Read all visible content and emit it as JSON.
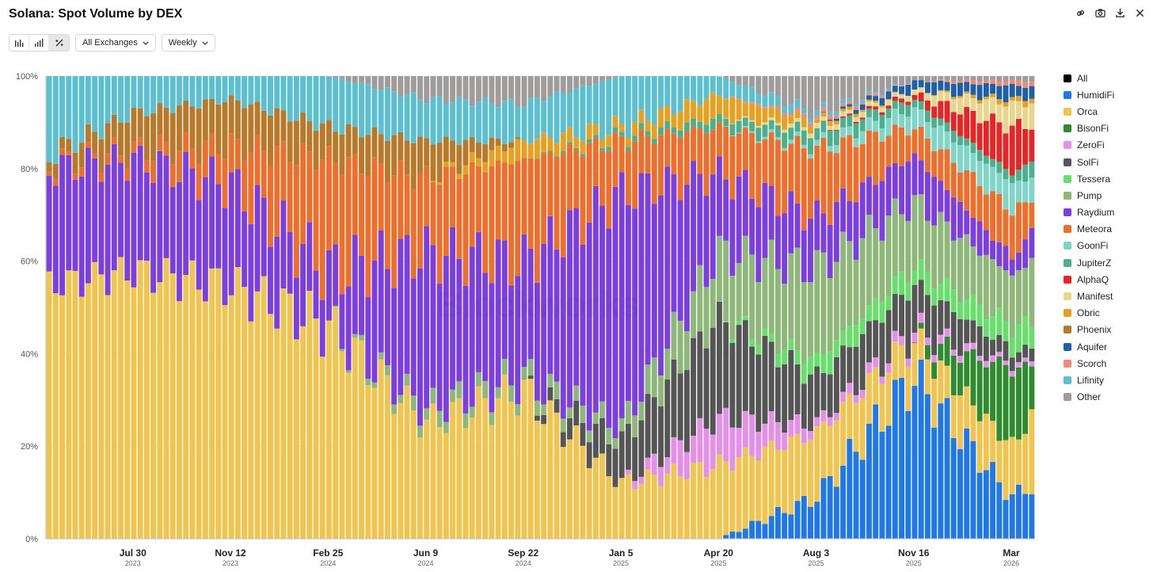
{
  "page": {
    "title": "Solana: Spot Volume by DEX"
  },
  "toolbar": {
    "chart_type_buttons": [
      {
        "name": "absolute-bar-button",
        "icon": "bar-chart-icon"
      },
      {
        "name": "stacked-bar-button",
        "icon": "stacked-bar-icon"
      },
      {
        "name": "percent-bar-button",
        "icon": "percent-icon",
        "active": true
      }
    ],
    "exchange_dropdown": "All Exchanges",
    "interval_dropdown": "Weekly"
  },
  "top_icons": [
    "link-icon",
    "camera-icon",
    "download-icon",
    "close-icon"
  ],
  "chart_data": {
    "type": "bar",
    "stacked": true,
    "normalized": "percent",
    "interval": "weekly",
    "x_start": "2023-05-01",
    "x_end": "2026-03-23",
    "y_ticks": [
      "0%",
      "20%",
      "40%",
      "60%",
      "80%",
      "100%"
    ],
    "ylim": [
      0,
      100
    ],
    "x_ticks": [
      {
        "label": "Jul 30",
        "year": "2023"
      },
      {
        "label": "Nov 12",
        "year": "2023"
      },
      {
        "label": "Feb 25",
        "year": "2024"
      },
      {
        "label": "Jun 9",
        "year": "2024"
      },
      {
        "label": "Sep 22",
        "year": "2024"
      },
      {
        "label": "Jan 5",
        "year": "2025"
      },
      {
        "label": "Apr 20",
        "year": "2025"
      },
      {
        "label": "Aug 3",
        "year": "2025"
      },
      {
        "label": "Nov 16",
        "year": "2025"
      },
      {
        "label": "Mar",
        "year": "2026"
      }
    ],
    "grid": "horizontal",
    "legend_position": "right",
    "legend": [
      {
        "name": "All",
        "color": "#000000"
      },
      {
        "name": "HumidiFi",
        "color": "#1f77e8"
      },
      {
        "name": "Orca",
        "color": "#f0c44f"
      },
      {
        "name": "BisonFi",
        "color": "#2e8b2e"
      },
      {
        "name": "ZeroFi",
        "color": "#e58fe8"
      },
      {
        "name": "SolFi",
        "color": "#555555"
      },
      {
        "name": "Tessera",
        "color": "#66e06a"
      },
      {
        "name": "Pump",
        "color": "#8fb77a"
      },
      {
        "name": "Raydium",
        "color": "#7b3fe0"
      },
      {
        "name": "Meteora",
        "color": "#ee6e2c"
      },
      {
        "name": "GoonFi",
        "color": "#7fd6c8"
      },
      {
        "name": "JupiterZ",
        "color": "#4caf8e"
      },
      {
        "name": "AlphaQ",
        "color": "#e82525"
      },
      {
        "name": "Manifest",
        "color": "#e8d68e"
      },
      {
        "name": "Obric",
        "color": "#e8a020"
      },
      {
        "name": "Phoenix",
        "color": "#b87a2a"
      },
      {
        "name": "Aquifer",
        "color": "#1d5fa8"
      },
      {
        "name": "Scorch",
        "color": "#f08a7a"
      },
      {
        "name": "Lifinity",
        "color": "#5bbfcf"
      },
      {
        "name": "Other",
        "color": "#a09c9c"
      }
    ],
    "approx_share_percent": {
      "description": "Approximate weekly shares (% of total) at the labeled x-ticks; bottom-to-top stacking order: HumidiFi, Orca, BisonFi, ZeroFi, SolFi, Tessera, Pump, Raydium, Meteora, GoonFi, JupiterZ, AlphaQ, Manifest, Obric, Phoenix, Aquifer, Scorch, Lifinity, Other",
      "series_order": [
        "HumidiFi",
        "Orca",
        "BisonFi",
        "ZeroFi",
        "SolFi",
        "Tessera",
        "Pump",
        "Raydium",
        "Meteora",
        "GoonFi",
        "JupiterZ",
        "AlphaQ",
        "Manifest",
        "Obric",
        "Phoenix",
        "Aquifer",
        "Scorch",
        "Lifinity",
        "Other"
      ],
      "at_ticks": {
        "Jul 30 2023": [
          0,
          58,
          0,
          0,
          0,
          0,
          0,
          24,
          2,
          0,
          0,
          0,
          0,
          0,
          8,
          0,
          0,
          8,
          0
        ],
        "Nov 12 2023": [
          0,
          55,
          0,
          0,
          0,
          0,
          0,
          22,
          8,
          0,
          0,
          0,
          0,
          0,
          10,
          0,
          0,
          5,
          0
        ],
        "Feb 25 2024": [
          0,
          46,
          0,
          0,
          0,
          0,
          0,
          12,
          24,
          0,
          0,
          0,
          0,
          0,
          7,
          0,
          0,
          11,
          0
        ],
        "Jun 9 2024": [
          0,
          25,
          0,
          0,
          0,
          0,
          3,
          34,
          16,
          0,
          0,
          0,
          0,
          0,
          8,
          0,
          0,
          9,
          5
        ],
        "Sep 22 2024": [
          0,
          32,
          0,
          0,
          0,
          0,
          3,
          25,
          22,
          0,
          0,
          0,
          0,
          4,
          0,
          0,
          0,
          8,
          6
        ],
        "Jan 5 2025": [
          0,
          12,
          0,
          0,
          9,
          0,
          3,
          51,
          11,
          0,
          1,
          0,
          0,
          2,
          0,
          0,
          0,
          11,
          0
        ],
        "Apr 20 2025": [
          0,
          16,
          0,
          10,
          22,
          0,
          14,
          17,
          10,
          0,
          2,
          0,
          0,
          5,
          0,
          0,
          0,
          4,
          0
        ],
        "Aug 3 2025": [
          9,
          14,
          0,
          2,
          10,
          4,
          20,
          11,
          15,
          1,
          3,
          0,
          1,
          1,
          0,
          0,
          1,
          1,
          8
        ],
        "Nov 16 2025": [
          35,
          8,
          0,
          2,
          10,
          4,
          14,
          10,
          6,
          4,
          2,
          1,
          1,
          0,
          0,
          2,
          0,
          0,
          1
        ],
        "Mar 2026": [
          9,
          11,
          17,
          1,
          3,
          5,
          11,
          4,
          10,
          6,
          2,
          10,
          5,
          1,
          0,
          3,
          1,
          0,
          1
        ]
      }
    },
    "watermark": "Blockworks"
  }
}
